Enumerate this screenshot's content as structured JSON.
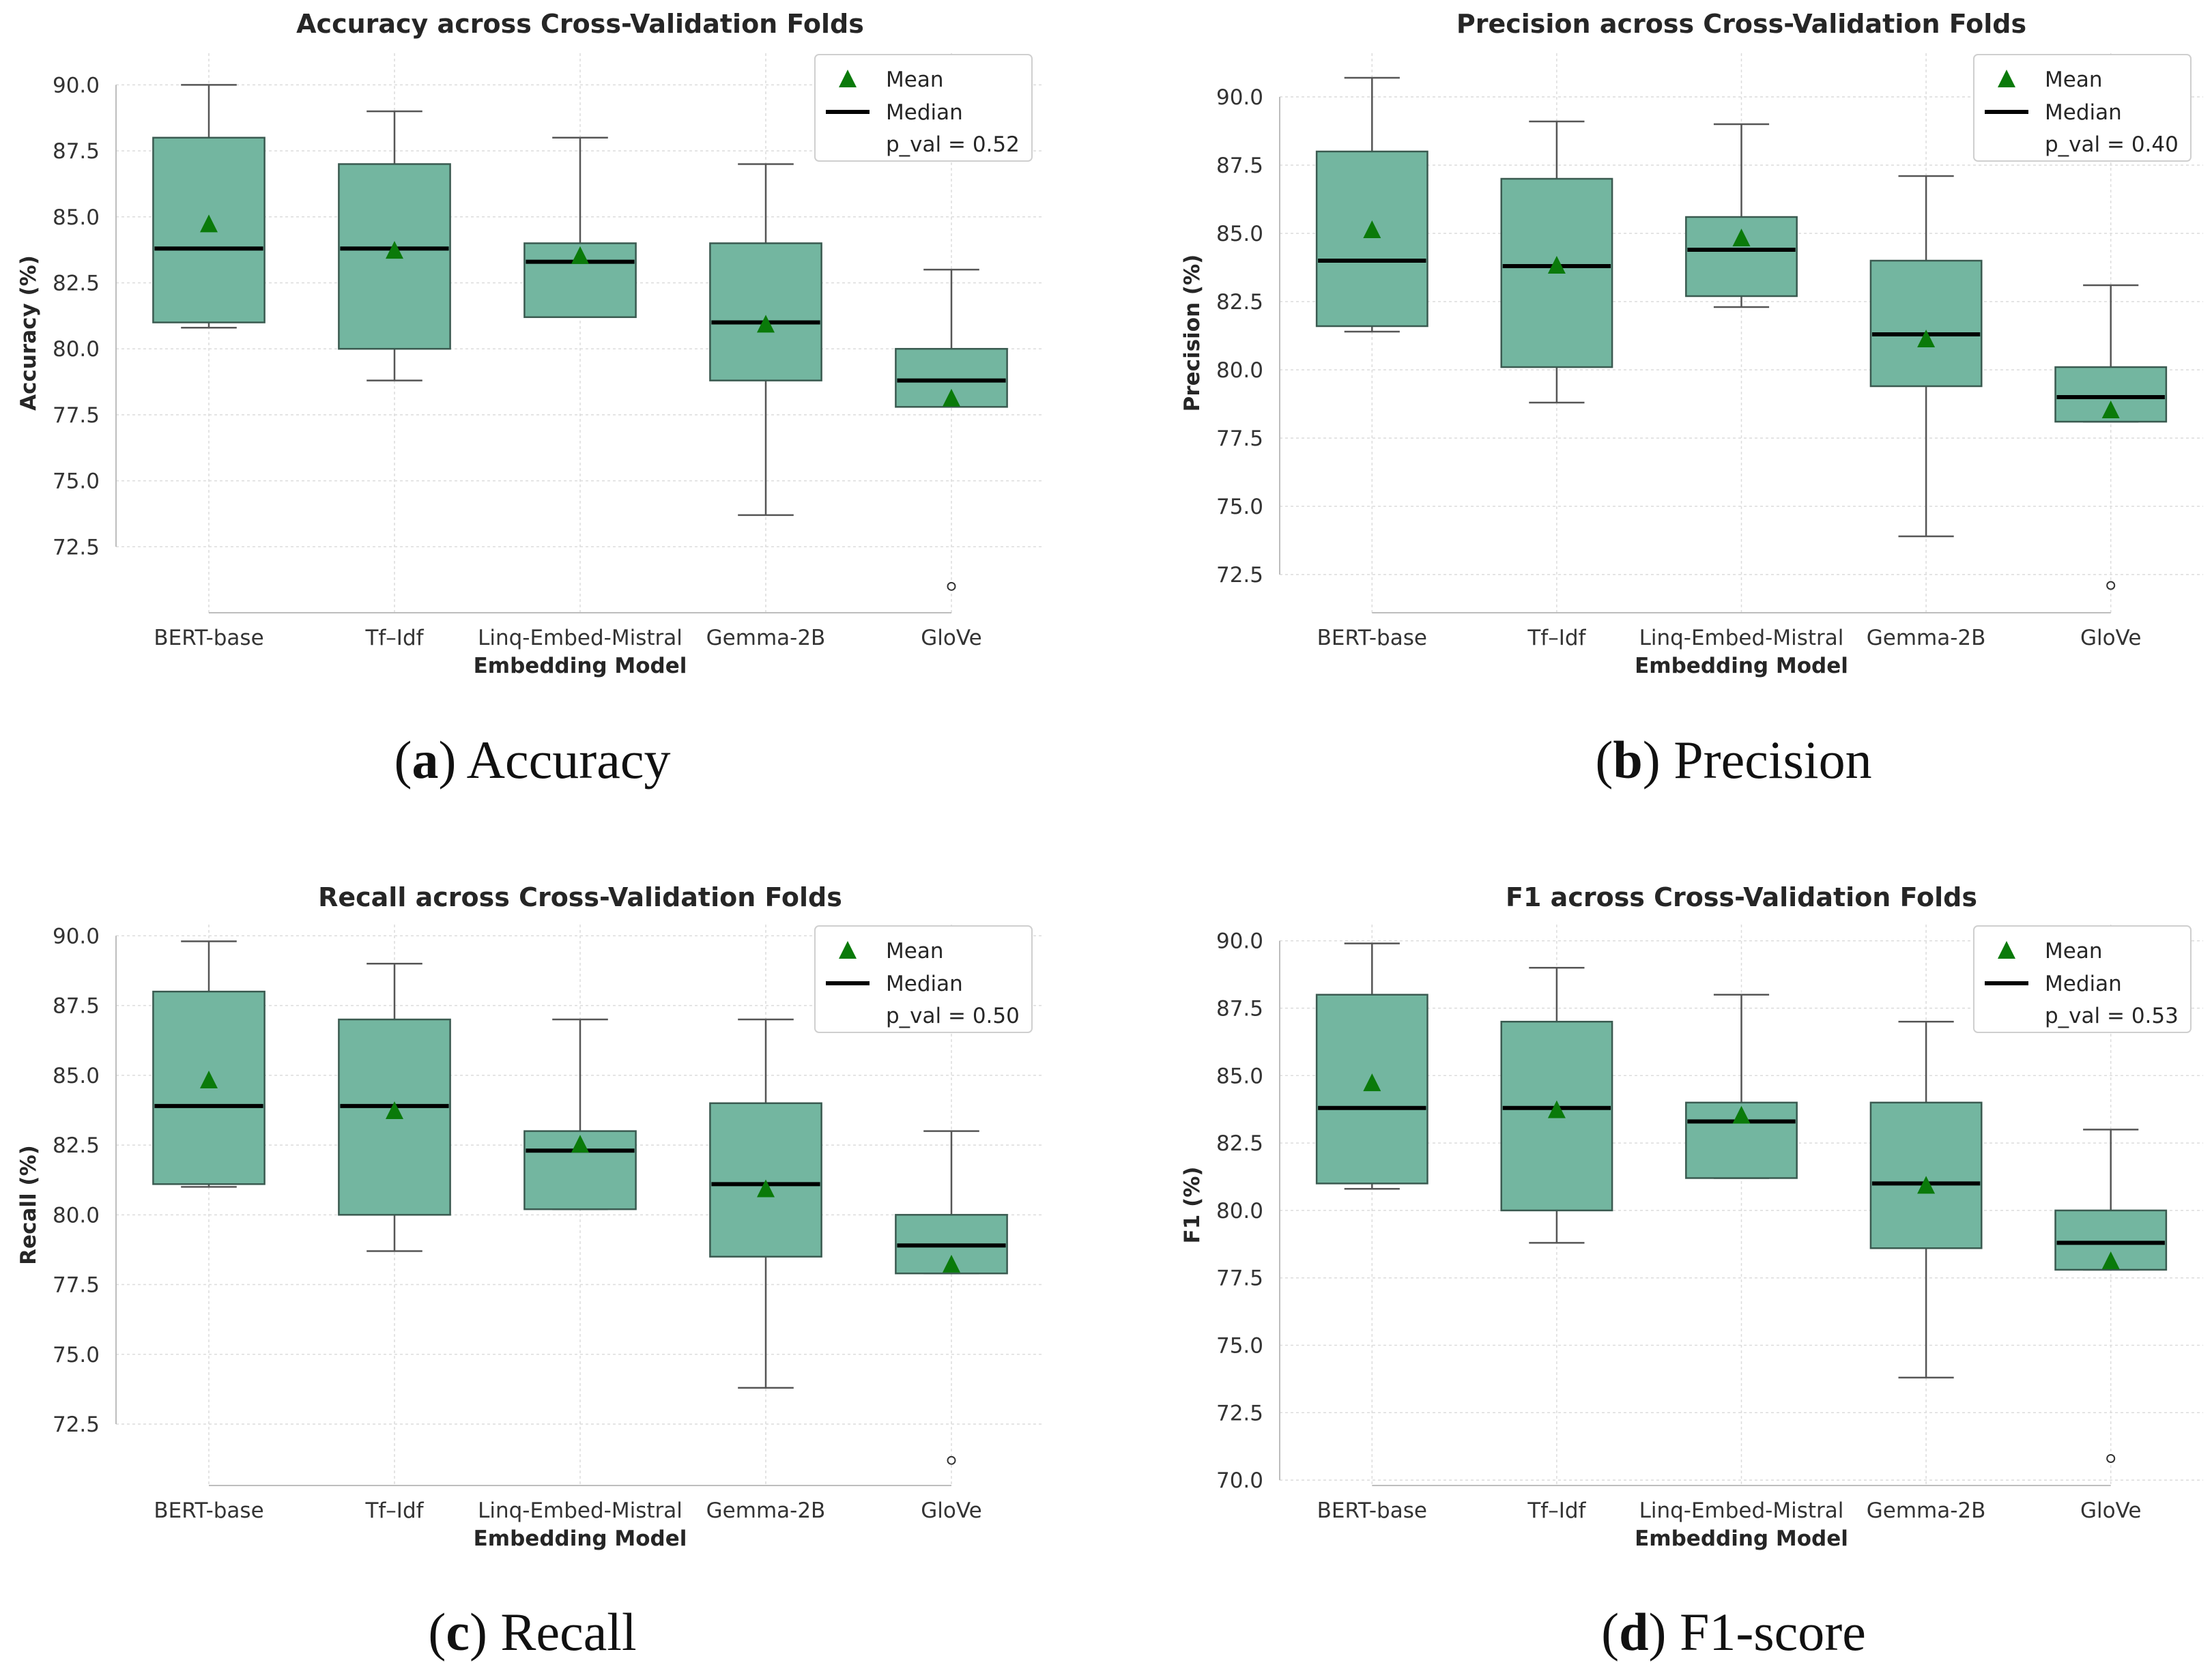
{
  "colors": {
    "box_fill": "#73b6a0",
    "box_edge": "#3a5a50",
    "whisker": "#555555",
    "median": "#000000",
    "mean": "#0a7a0a",
    "grid": "#dcdcdc",
    "axis": "#bdbdbd"
  },
  "legend_labels": {
    "mean": "Mean",
    "median": "Median"
  },
  "chart_data": [
    {
      "type": "boxplot",
      "caption_letter": "a",
      "caption_text": "Accuracy",
      "title": "Accuracy across Cross-Validation Folds",
      "xlabel": "Embedding Model",
      "ylabel": "Accuracy (%)",
      "ylim": [
        70.0,
        91.2
      ],
      "yticks": [
        72.5,
        75.0,
        77.5,
        80.0,
        82.5,
        85.0,
        87.5,
        90.0
      ],
      "legend_location": "top-right",
      "p_val_text": "p_val = 0.52",
      "categories": [
        "BERT-base",
        "Tf–Idf",
        "Linq-Embed-Mistral",
        "Gemma-2B",
        "GloVe"
      ],
      "series": [
        {
          "name": "BERT-base",
          "whisker_low": 80.8,
          "q1": 81.0,
          "median": 83.8,
          "q3": 88.0,
          "whisker_high": 90.0,
          "mean": 84.7,
          "outliers": []
        },
        {
          "name": "Tf–Idf",
          "whisker_low": 78.8,
          "q1": 80.0,
          "median": 83.8,
          "q3": 87.0,
          "whisker_high": 89.0,
          "mean": 83.7,
          "outliers": []
        },
        {
          "name": "Linq-Embed-Mistral",
          "whisker_low": 81.2,
          "q1": 81.2,
          "median": 83.3,
          "q3": 84.0,
          "whisker_high": 88.0,
          "mean": 83.5,
          "outliers": []
        },
        {
          "name": "Gemma-2B",
          "whisker_low": 73.7,
          "q1": 78.8,
          "median": 81.0,
          "q3": 84.0,
          "whisker_high": 87.0,
          "mean": 80.9,
          "outliers": []
        },
        {
          "name": "GloVe",
          "whisker_low": 77.8,
          "q1": 77.8,
          "median": 78.8,
          "q3": 80.0,
          "whisker_high": 83.0,
          "mean": 78.1,
          "outliers": [
            71.0
          ]
        }
      ]
    },
    {
      "type": "boxplot",
      "caption_letter": "b",
      "caption_text": "Precision",
      "title": "Precision across Cross-Validation Folds",
      "xlabel": "Embedding Model",
      "ylabel": "Precision (%)",
      "ylim": [
        71.1,
        91.6
      ],
      "yticks": [
        72.5,
        75.0,
        77.5,
        80.0,
        82.5,
        85.0,
        87.5,
        90.0
      ],
      "legend_location": "top-right",
      "p_val_text": "p_val = 0.40",
      "categories": [
        "BERT-base",
        "Tf–Idf",
        "Linq-Embed-Mistral",
        "Gemma-2B",
        "GloVe"
      ],
      "series": [
        {
          "name": "BERT-base",
          "whisker_low": 81.4,
          "q1": 81.6,
          "median": 84.0,
          "q3": 88.0,
          "whisker_high": 90.7,
          "mean": 85.1,
          "outliers": []
        },
        {
          "name": "Tf–Idf",
          "whisker_low": 78.8,
          "q1": 80.1,
          "median": 83.8,
          "q3": 87.0,
          "whisker_high": 89.1,
          "mean": 83.8,
          "outliers": []
        },
        {
          "name": "Linq-Embed-Mistral",
          "whisker_low": 82.3,
          "q1": 82.7,
          "median": 84.4,
          "q3": 85.6,
          "whisker_high": 89.0,
          "mean": 84.8,
          "outliers": []
        },
        {
          "name": "Gemma-2B",
          "whisker_low": 73.9,
          "q1": 79.4,
          "median": 81.3,
          "q3": 84.0,
          "whisker_high": 87.1,
          "mean": 81.1,
          "outliers": []
        },
        {
          "name": "GloVe",
          "whisker_low": 78.1,
          "q1": 78.1,
          "median": 79.0,
          "q3": 80.1,
          "whisker_high": 83.1,
          "mean": 78.5,
          "outliers": [
            72.1
          ]
        }
      ]
    },
    {
      "type": "boxplot",
      "caption_letter": "c",
      "caption_text": "Recall",
      "title": "Recall across Cross-Validation Folds",
      "xlabel": "Embedding Model",
      "ylabel": "Recall (%)",
      "ylim": [
        70.3,
        90.4
      ],
      "yticks": [
        72.5,
        75.0,
        77.5,
        80.0,
        82.5,
        85.0,
        87.5,
        90.0
      ],
      "legend_location": "top-right",
      "p_val_text": "p_val = 0.50",
      "categories": [
        "BERT-base",
        "Tf–Idf",
        "Linq-Embed-Mistral",
        "Gemma-2B",
        "GloVe"
      ],
      "series": [
        {
          "name": "BERT-base",
          "whisker_low": 81.0,
          "q1": 81.1,
          "median": 83.9,
          "q3": 88.0,
          "whisker_high": 89.8,
          "mean": 84.8,
          "outliers": []
        },
        {
          "name": "Tf–Idf",
          "whisker_low": 78.7,
          "q1": 80.0,
          "median": 83.9,
          "q3": 87.0,
          "whisker_high": 89.0,
          "mean": 83.7,
          "outliers": []
        },
        {
          "name": "Linq-Embed-Mistral",
          "whisker_low": 80.2,
          "q1": 80.2,
          "median": 82.3,
          "q3": 83.0,
          "whisker_high": 87.0,
          "mean": 82.5,
          "outliers": []
        },
        {
          "name": "Gemma-2B",
          "whisker_low": 73.8,
          "q1": 78.5,
          "median": 81.1,
          "q3": 84.0,
          "whisker_high": 87.0,
          "mean": 80.9,
          "outliers": []
        },
        {
          "name": "GloVe",
          "whisker_low": 77.9,
          "q1": 77.9,
          "median": 78.9,
          "q3": 80.0,
          "whisker_high": 83.0,
          "mean": 78.2,
          "outliers": [
            71.2
          ]
        }
      ]
    },
    {
      "type": "boxplot",
      "caption_letter": "d",
      "caption_text": "F1-score",
      "title": "F1 across Cross-Validation Folds",
      "xlabel": "Embedding Model",
      "ylabel": "F1 (%)",
      "ylim": [
        69.8,
        90.6
      ],
      "yticks": [
        70.0,
        72.5,
        75.0,
        77.5,
        80.0,
        82.5,
        85.0,
        87.5,
        90.0
      ],
      "legend_location": "top-right",
      "p_val_text": "p_val = 0.53",
      "categories": [
        "BERT-base",
        "Tf–Idf",
        "Linq-Embed-Mistral",
        "Gemma-2B",
        "GloVe"
      ],
      "series": [
        {
          "name": "BERT-base",
          "whisker_low": 80.8,
          "q1": 81.0,
          "median": 83.8,
          "q3": 88.0,
          "whisker_high": 89.9,
          "mean": 84.7,
          "outliers": []
        },
        {
          "name": "Tf–Idf",
          "whisker_low": 78.8,
          "q1": 80.0,
          "median": 83.8,
          "q3": 87.0,
          "whisker_high": 89.0,
          "mean": 83.7,
          "outliers": []
        },
        {
          "name": "Linq-Embed-Mistral",
          "whisker_low": 81.2,
          "q1": 81.2,
          "median": 83.3,
          "q3": 84.0,
          "whisker_high": 88.0,
          "mean": 83.5,
          "outliers": []
        },
        {
          "name": "Gemma-2B",
          "whisker_low": 73.8,
          "q1": 78.6,
          "median": 81.0,
          "q3": 84.0,
          "whisker_high": 87.0,
          "mean": 80.9,
          "outliers": []
        },
        {
          "name": "GloVe",
          "whisker_low": 77.8,
          "q1": 77.8,
          "median": 78.8,
          "q3": 80.0,
          "whisker_high": 83.0,
          "mean": 78.1,
          "outliers": [
            70.8
          ]
        }
      ]
    }
  ]
}
